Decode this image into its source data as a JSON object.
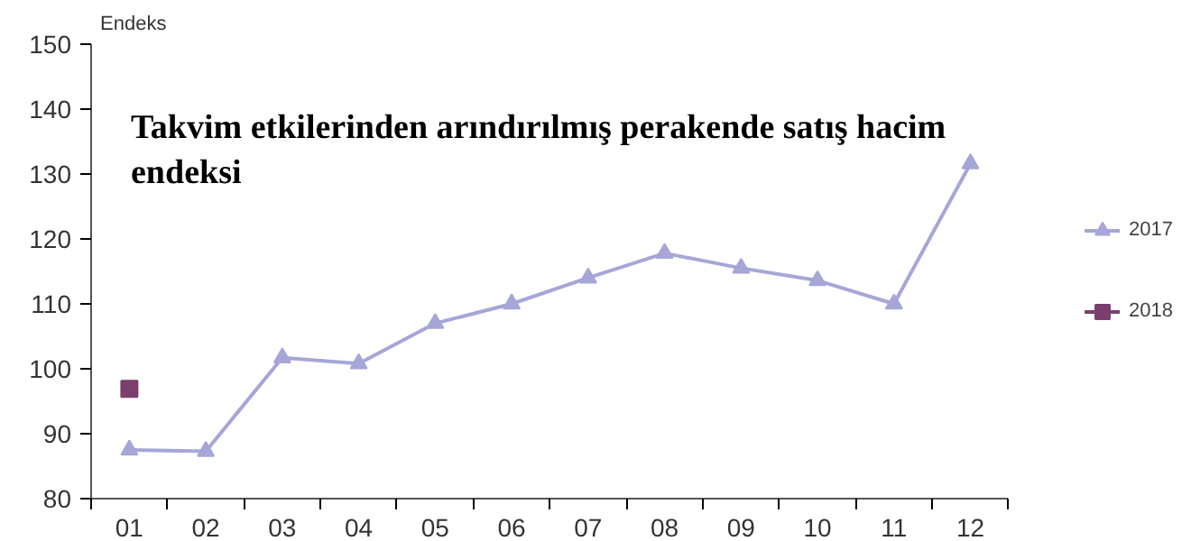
{
  "chart_data": {
    "type": "line",
    "title": "Takvim etkilerinden arındırılmış perakende satış hacim endeksi",
    "ylabel": "Endeks",
    "categories": [
      "01",
      "02",
      "03",
      "04",
      "05",
      "06",
      "07",
      "08",
      "09",
      "10",
      "11",
      "12"
    ],
    "series": [
      {
        "name": "2017",
        "color": "#a6a6d8",
        "marker": "triangle",
        "values": [
          87.5,
          87.3,
          101.7,
          100.8,
          107,
          110,
          114,
          117.8,
          115.5,
          113.6,
          110,
          131.6
        ]
      },
      {
        "name": "2018",
        "color": "#7b3f6e",
        "marker": "square",
        "values": [
          96.9,
          null,
          null,
          null,
          null,
          null,
          null,
          null,
          null,
          null,
          null,
          null
        ]
      }
    ],
    "ylim": [
      80,
      150
    ],
    "yticks": [
      80,
      90,
      100,
      110,
      120,
      130,
      140,
      150
    ],
    "grid": false,
    "legend": "right"
  }
}
